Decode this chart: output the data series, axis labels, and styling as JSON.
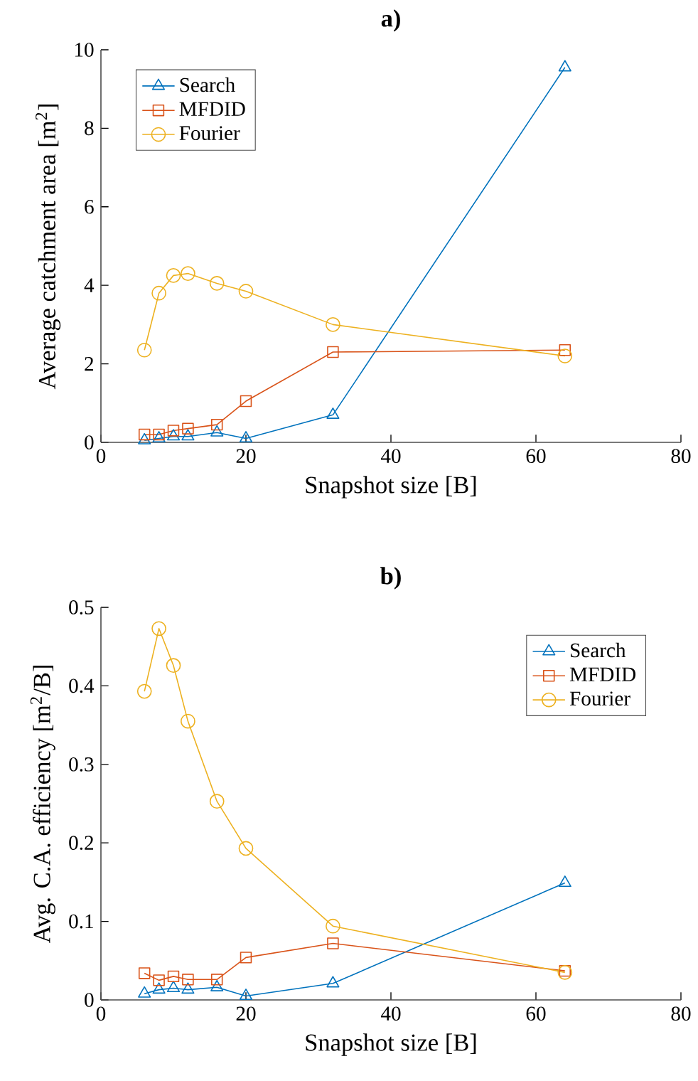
{
  "chart_data": [
    {
      "type": "line",
      "title": "**a)**",
      "xlabel": "Snapshot size [B]",
      "ylabel": "Average catchment area [m$^{2}$]",
      "x": [
        6,
        8,
        10,
        12,
        16,
        20,
        32,
        64
      ],
      "series": [
        {
          "name": "Search",
          "color": "#0072bd",
          "marker": "triangle",
          "values": [
            0.05,
            0.1,
            0.15,
            0.15,
            0.25,
            0.1,
            0.7,
            9.55
          ]
        },
        {
          "name": "MFDID",
          "color": "#d95319",
          "marker": "square",
          "values": [
            0.2,
            0.2,
            0.3,
            0.35,
            0.45,
            1.05,
            2.3,
            2.35
          ]
        },
        {
          "name": "Fourier",
          "color": "#edb120",
          "marker": "circle",
          "values": [
            2.35,
            3.8,
            4.25,
            4.3,
            4.05,
            3.85,
            3.0,
            2.2
          ]
        }
      ],
      "xlim": [
        0,
        80
      ],
      "xticks": [
        0,
        20,
        40,
        60,
        80
      ],
      "ylim": [
        0,
        10
      ],
      "yticks": [
        0,
        2,
        4,
        6,
        8,
        10
      ],
      "grid": false,
      "legend": "top left"
    },
    {
      "type": "line",
      "title": "**b)**",
      "xlabel": "Snapshot size [B]",
      "ylabel": "Avg. C.A. efficiency [m$^{2}$/B]",
      "x": [
        6,
        8,
        10,
        12,
        16,
        20,
        32,
        64
      ],
      "series": [
        {
          "name": "Search",
          "color": "#0072bd",
          "marker": "triangle",
          "values": [
            0.008,
            0.013,
            0.015,
            0.013,
            0.016,
            0.005,
            0.021,
            0.149
          ]
        },
        {
          "name": "MFDID",
          "color": "#d95319",
          "marker": "square",
          "values": [
            0.034,
            0.025,
            0.03,
            0.026,
            0.026,
            0.054,
            0.072,
            0.037
          ]
        },
        {
          "name": "Fourier",
          "color": "#edb120",
          "marker": "circle",
          "values": [
            0.393,
            0.473,
            0.426,
            0.355,
            0.253,
            0.193,
            0.094,
            0.035
          ]
        }
      ],
      "xlim": [
        0,
        80
      ],
      "xticks": [
        0,
        20,
        40,
        60,
        80
      ],
      "ylim": [
        0,
        0.5
      ],
      "yticks": [
        0,
        0.1,
        0.2,
        0.3,
        0.4,
        0.5
      ],
      "grid": false,
      "legend": "top right"
    }
  ]
}
